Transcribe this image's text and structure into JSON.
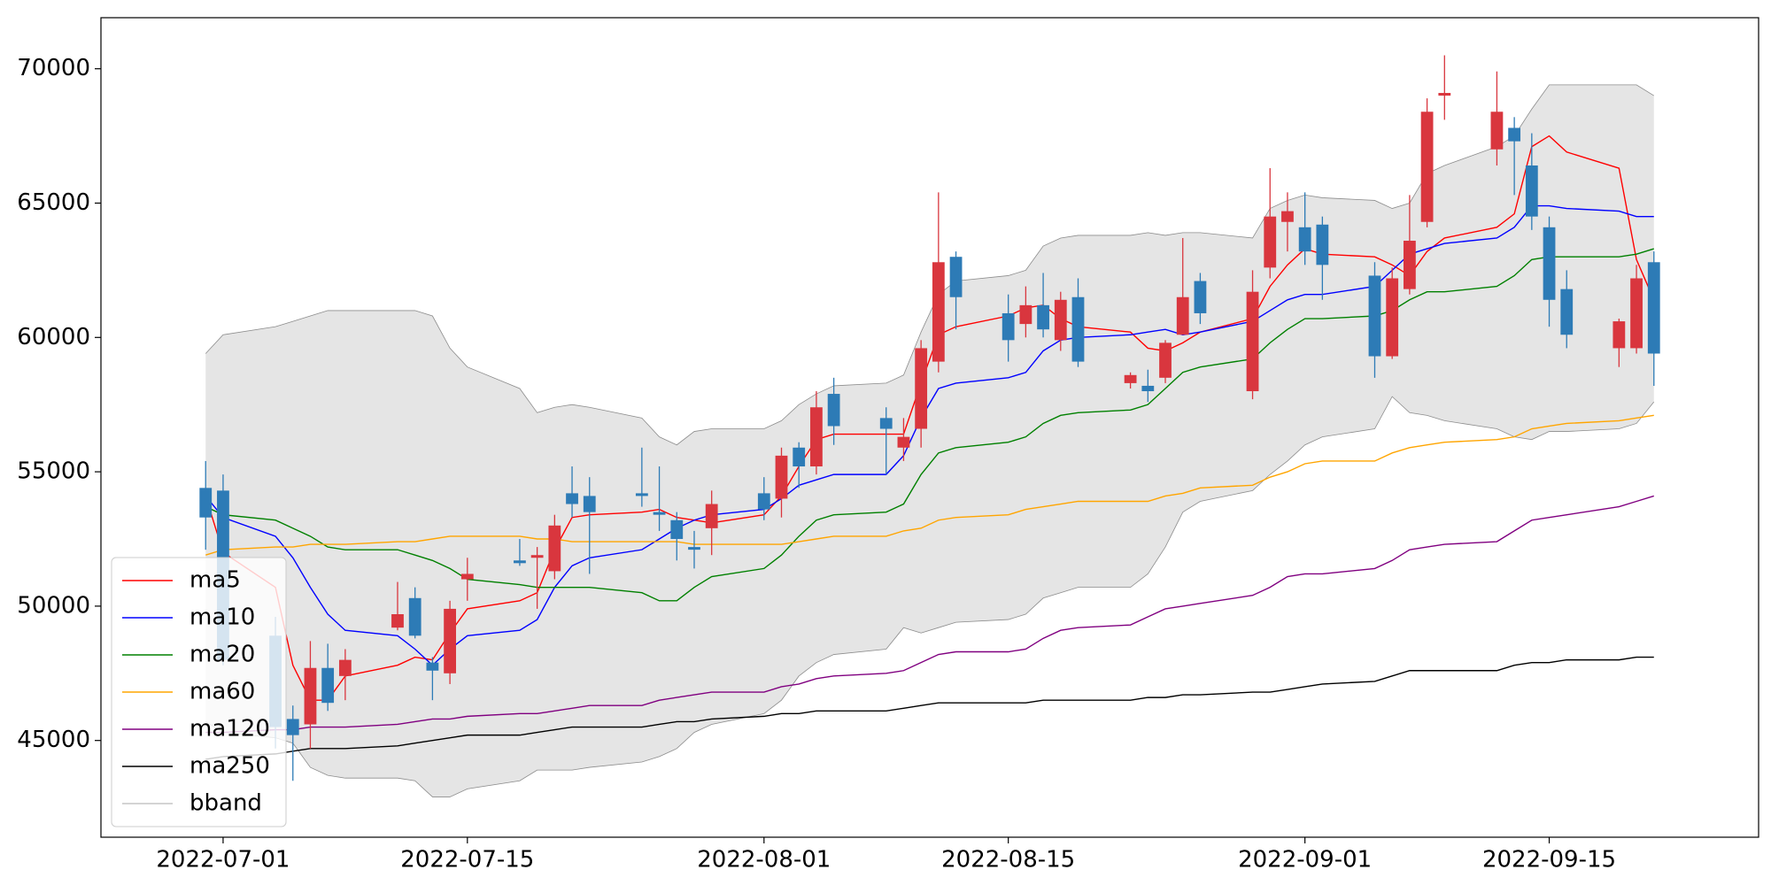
{
  "chart_data": {
    "type": "candlestick",
    "x": [
      "2022-06-30",
      "2022-07-01",
      "2022-07-04",
      "2022-07-05",
      "2022-07-06",
      "2022-07-07",
      "2022-07-08",
      "2022-07-11",
      "2022-07-12",
      "2022-07-13",
      "2022-07-14",
      "2022-07-15",
      "2022-07-18",
      "2022-07-19",
      "2022-07-20",
      "2022-07-21",
      "2022-07-22",
      "2022-07-25",
      "2022-07-26",
      "2022-07-27",
      "2022-07-28",
      "2022-07-29",
      "2022-08-01",
      "2022-08-02",
      "2022-08-03",
      "2022-08-04",
      "2022-08-05",
      "2022-08-08",
      "2022-08-09",
      "2022-08-10",
      "2022-08-11",
      "2022-08-12",
      "2022-08-15",
      "2022-08-16",
      "2022-08-17",
      "2022-08-18",
      "2022-08-19",
      "2022-08-22",
      "2022-08-23",
      "2022-08-24",
      "2022-08-25",
      "2022-08-26",
      "2022-08-29",
      "2022-08-30",
      "2022-08-31",
      "2022-09-01",
      "2022-09-02",
      "2022-09-05",
      "2022-09-06",
      "2022-09-07",
      "2022-09-08",
      "2022-09-09",
      "2022-09-12",
      "2022-09-13",
      "2022-09-14",
      "2022-09-15",
      "2022-09-16",
      "2022-09-19",
      "2022-09-20",
      "2022-09-21"
    ],
    "open": [
      54400,
      54300,
      48900,
      45800,
      45600,
      47700,
      47400,
      49200,
      50300,
      47900,
      47500,
      51000,
      51700,
      51800,
      51300,
      54200,
      54100,
      54200,
      53500,
      53200,
      52200,
      52900,
      54200,
      54000,
      55900,
      55200,
      57900,
      57000,
      55900,
      56600,
      59100,
      63000,
      60900,
      60500,
      61200,
      59900,
      61500,
      58300,
      58200,
      58500,
      60100,
      62100,
      58000,
      62600,
      64300,
      64100,
      64200,
      62300,
      59300,
      61800,
      64300,
      69000,
      67000,
      67800,
      66400,
      64100,
      61800,
      59600,
      59600,
      62800
    ],
    "high": [
      55400,
      54900,
      49600,
      46300,
      48700,
      48600,
      48400,
      50900,
      50700,
      48100,
      50200,
      51800,
      52500,
      52200,
      53400,
      55200,
      54800,
      55900,
      55200,
      53500,
      52800,
      54300,
      54800,
      55900,
      56100,
      58000,
      58500,
      57400,
      57000,
      59900,
      65400,
      63200,
      61600,
      61900,
      62400,
      61700,
      62200,
      58700,
      58800,
      59900,
      63700,
      62400,
      62500,
      66300,
      65400,
      65400,
      64500,
      62800,
      62600,
      65300,
      68900,
      70500,
      69900,
      68200,
      67600,
      64500,
      62500,
      60700,
      62700,
      63200
    ],
    "low": [
      52100,
      47800,
      44700,
      43500,
      44700,
      46100,
      46500,
      49100,
      48800,
      46500,
      47100,
      50200,
      51500,
      49900,
      51000,
      53300,
      51200,
      53700,
      52800,
      51700,
      51400,
      51900,
      53200,
      53300,
      54400,
      54900,
      56000,
      54900,
      55400,
      55900,
      58700,
      60300,
      59100,
      60000,
      60000,
      59500,
      58900,
      58100,
      57600,
      58300,
      60100,
      60500,
      57700,
      62200,
      63200,
      62700,
      61400,
      58500,
      59200,
      61600,
      64100,
      68100,
      66400,
      65300,
      64000,
      60400,
      59600,
      58900,
      59400,
      58200
    ],
    "close": [
      53300,
      48000,
      45500,
      45200,
      47700,
      46400,
      48000,
      49700,
      48900,
      47600,
      49900,
      51200,
      51600,
      51900,
      53000,
      53800,
      53500,
      54100,
      53400,
      52500,
      52100,
      53800,
      53600,
      55600,
      55200,
      57400,
      56700,
      56600,
      56300,
      59600,
      62800,
      61500,
      59900,
      61200,
      60300,
      61400,
      59100,
      58600,
      58000,
      59800,
      61500,
      60900,
      61700,
      64500,
      64700,
      63200,
      62700,
      59300,
      62200,
      63600,
      68400,
      69100,
      68400,
      67300,
      64500,
      61400,
      60100,
      60600,
      62200,
      59400
    ],
    "up_color": "#d9363e",
    "down_color": "#2d7bb6",
    "series": [
      {
        "name": "ma5",
        "color": "#ff0000",
        "values": [
          54100,
          52000,
          50700,
          47800,
          46500,
          46500,
          47400,
          47800,
          48100,
          48000,
          49000,
          49900,
          50200,
          50500,
          52100,
          53300,
          53400,
          53500,
          53600,
          53300,
          53200,
          53100,
          53400,
          54100,
          55200,
          56200,
          56400,
          56400,
          56400,
          58300,
          60100,
          60400,
          60800,
          61100,
          61200,
          60700,
          60400,
          60200,
          59600,
          59500,
          59800,
          60200,
          60700,
          61900,
          62700,
          63300,
          63100,
          63000,
          62700,
          62300,
          63200,
          63700,
          64100,
          64600,
          67100,
          67500,
          66900,
          66300,
          62900,
          61400
        ]
      },
      {
        "name": "ma10",
        "color": "#0000ff",
        "values": [
          54100,
          53300,
          52600,
          51800,
          50700,
          49700,
          49100,
          48900,
          48400,
          47800,
          48400,
          48900,
          49100,
          49500,
          50700,
          51500,
          51800,
          52100,
          52500,
          52900,
          53200,
          53400,
          53600,
          54000,
          54500,
          54700,
          54900,
          54900,
          55600,
          57000,
          58100,
          58300,
          58500,
          58700,
          59500,
          59900,
          60000,
          60100,
          60200,
          60300,
          60100,
          60200,
          60600,
          61000,
          61400,
          61600,
          61600,
          61900,
          62500,
          63100,
          63300,
          63500,
          63700,
          64100,
          64900,
          64900,
          64800,
          64700,
          64500,
          64500
        ]
      },
      {
        "name": "ma20",
        "color": "#008000",
        "values": [
          53700,
          53400,
          53200,
          52900,
          52600,
          52200,
          52100,
          52100,
          51900,
          51700,
          51400,
          51000,
          50800,
          50700,
          50700,
          50700,
          50700,
          50500,
          50200,
          50200,
          50700,
          51100,
          51400,
          51900,
          52600,
          53200,
          53400,
          53500,
          53800,
          54900,
          55700,
          55900,
          56100,
          56300,
          56800,
          57100,
          57200,
          57300,
          57500,
          58100,
          58700,
          58900,
          59200,
          59800,
          60300,
          60700,
          60700,
          60800,
          61000,
          61400,
          61700,
          61700,
          61900,
          62300,
          62900,
          63000,
          63000,
          63000,
          63100,
          63300
        ]
      },
      {
        "name": "ma60",
        "color": "#ffa500",
        "values": [
          51900,
          52100,
          52200,
          52200,
          52300,
          52300,
          52300,
          52400,
          52400,
          52500,
          52600,
          52600,
          52600,
          52500,
          52500,
          52400,
          52400,
          52400,
          52400,
          52400,
          52300,
          52300,
          52300,
          52300,
          52400,
          52500,
          52600,
          52600,
          52800,
          52900,
          53200,
          53300,
          53400,
          53600,
          53700,
          53800,
          53900,
          53900,
          53900,
          54100,
          54200,
          54400,
          54500,
          54800,
          55000,
          55300,
          55400,
          55400,
          55700,
          55900,
          56000,
          56100,
          56200,
          56300,
          56600,
          56700,
          56800,
          56900,
          57000,
          57100
        ]
      },
      {
        "name": "ma120",
        "color": "#800080",
        "values": [
          45300,
          45300,
          45400,
          45400,
          45500,
          45500,
          45500,
          45600,
          45700,
          45800,
          45800,
          45900,
          46000,
          46000,
          46100,
          46200,
          46300,
          46300,
          46500,
          46600,
          46700,
          46800,
          46800,
          47000,
          47100,
          47300,
          47400,
          47500,
          47600,
          47900,
          48200,
          48300,
          48300,
          48400,
          48800,
          49100,
          49200,
          49300,
          49600,
          49900,
          50000,
          50100,
          50400,
          50700,
          51100,
          51200,
          51200,
          51400,
          51700,
          52100,
          52200,
          52300,
          52400,
          52800,
          53200,
          53300,
          53400,
          53700,
          53900,
          54100
        ]
      },
      {
        "name": "ma250",
        "color": "#000000",
        "values": [
          44300,
          44400,
          44500,
          44600,
          44700,
          44700,
          44700,
          44800,
          44900,
          45000,
          45100,
          45200,
          45200,
          45300,
          45400,
          45500,
          45500,
          45500,
          45600,
          45700,
          45700,
          45800,
          45900,
          46000,
          46000,
          46100,
          46100,
          46100,
          46200,
          46300,
          46400,
          46400,
          46400,
          46400,
          46500,
          46500,
          46500,
          46500,
          46600,
          46600,
          46700,
          46700,
          46800,
          46800,
          46900,
          47000,
          47100,
          47200,
          47400,
          47600,
          47600,
          47600,
          47600,
          47800,
          47900,
          47900,
          48000,
          48000,
          48100,
          48100
        ]
      }
    ],
    "bband": {
      "name": "bband",
      "color": "#8c8c8c",
      "fill": "#e5e5e5",
      "upper": [
        59400,
        60100,
        60400,
        60600,
        60800,
        61000,
        61000,
        61000,
        61000,
        60800,
        59600,
        58900,
        58100,
        57200,
        57400,
        57500,
        57400,
        57000,
        56300,
        56000,
        56500,
        56600,
        56600,
        56900,
        57500,
        57900,
        58200,
        58300,
        58600,
        60200,
        61600,
        62100,
        62300,
        62500,
        63400,
        63700,
        63800,
        63800,
        63900,
        63800,
        63900,
        63900,
        63700,
        64800,
        65100,
        65300,
        65200,
        65100,
        64800,
        65000,
        66100,
        66400,
        67100,
        67500,
        68500,
        69400,
        69400,
        69400,
        69400,
        69000
      ],
      "lower": [
        45700,
        45300,
        45100,
        44900,
        44000,
        43700,
        43600,
        43600,
        43500,
        42900,
        42900,
        43200,
        43500,
        43900,
        43900,
        43900,
        44000,
        44200,
        44400,
        44700,
        45300,
        45600,
        46000,
        46500,
        47400,
        47900,
        48200,
        48400,
        49200,
        49000,
        49200,
        49400,
        49500,
        49700,
        50300,
        50500,
        50700,
        50700,
        51200,
        52200,
        53500,
        53900,
        54300,
        54900,
        55400,
        56000,
        56300,
        56600,
        57800,
        57200,
        57100,
        56900,
        56600,
        56300,
        56200,
        56500,
        56500,
        56600,
        56800,
        57600
      ]
    },
    "ylim": [
      41400,
      71900
    ],
    "yticks": [
      45000,
      50000,
      55000,
      60000,
      65000,
      70000
    ],
    "xlim": [
      "2022-06-24",
      "2022-09-27"
    ],
    "xticks": [
      "2022-07-01",
      "2022-07-15",
      "2022-08-01",
      "2022-08-15",
      "2022-09-01",
      "2022-09-15"
    ],
    "legend": "lower left",
    "grid": false
  }
}
